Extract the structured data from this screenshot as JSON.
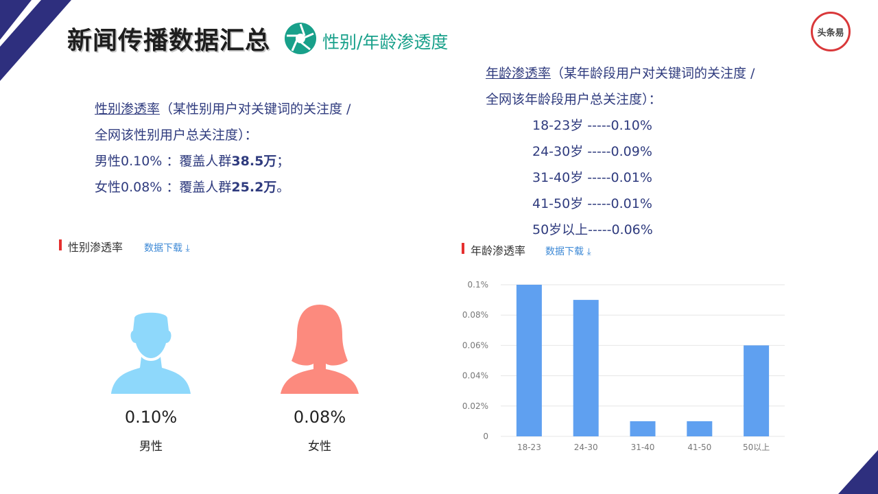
{
  "header": {
    "title": "新闻传播数据汇总",
    "subtitle": "性别/年龄渗透度",
    "logo_text": "头条易"
  },
  "gender_text": {
    "term": "性别渗透率",
    "definition_1": "（某性别用户对关键词的关注度 /",
    "definition_2": "全网该性别用户总关注度）：",
    "male_prefix": "男性0.10% ：覆盖人群",
    "male_value": "38.5万",
    "male_suffix": "；",
    "female_prefix": "女性0.08% ：覆盖人群",
    "female_value": "25.2万",
    "female_suffix": "。"
  },
  "age_text": {
    "term": "年龄渗透率",
    "definition_1": "（某年龄段用户对关键词的关注度 /",
    "definition_2": "全网该年龄段用户总关注度）：",
    "lines": [
      "18-23岁 -----0.10%",
      "24-30岁 -----0.09%",
      "31-40岁 -----0.01%",
      "41-50岁 -----0.01%",
      "50岁以上-----0.06%"
    ]
  },
  "gender_panel": {
    "section_title": "性别渗透率",
    "download_label": "数据下载",
    "male": {
      "percent": "0.10%",
      "label": "男性",
      "color": "#8ed8fb"
    },
    "female": {
      "percent": "0.08%",
      "label": "女性",
      "color": "#fc8a7e"
    }
  },
  "age_panel": {
    "section_title": "年龄渗透率",
    "download_label": "数据下载"
  },
  "colors": {
    "accent_navy": "#2e2f7e",
    "teal": "#18a08a",
    "text_blue": "#2f3b7e",
    "bar": "#5fa0f0",
    "red_marker": "#e5302f"
  },
  "chart_data": {
    "type": "bar",
    "categories": [
      "18-23",
      "24-30",
      "31-40",
      "41-50",
      "50以上"
    ],
    "values": [
      0.1,
      0.09,
      0.01,
      0.01,
      0.06
    ],
    "y_ticks": [
      "0",
      "0.02%",
      "0.04%",
      "0.06%",
      "0.08%",
      "0.1%"
    ],
    "ylim": [
      0,
      0.1
    ],
    "grid": true,
    "legend": "none"
  }
}
